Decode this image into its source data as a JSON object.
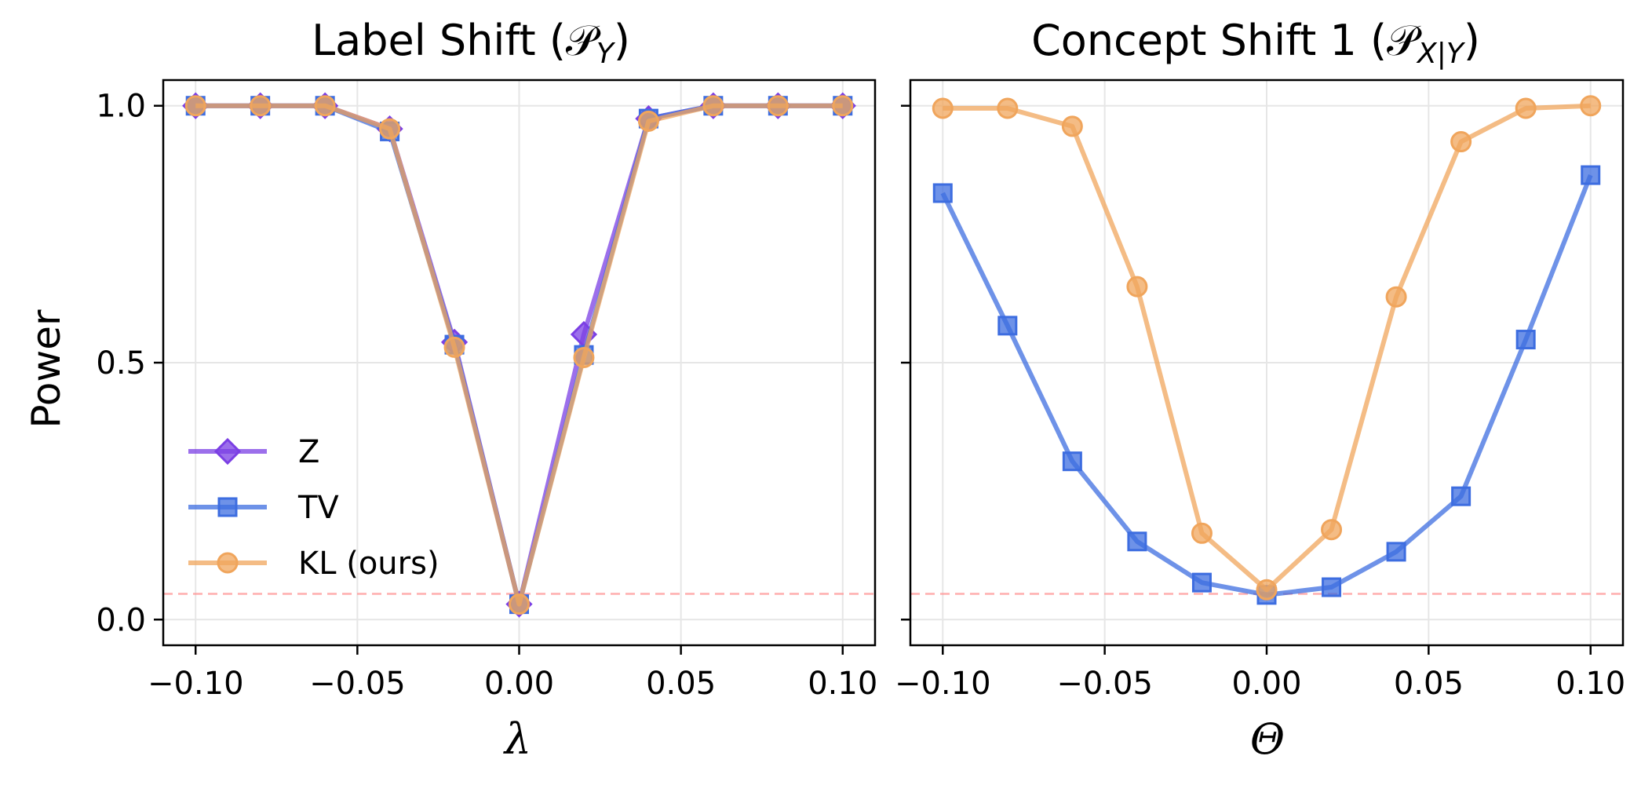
{
  "chart_data": [
    {
      "type": "line",
      "title": "Label Shift (",
      "title_math": "𝒫",
      "title_math_sub": "Y",
      "title_close": ")",
      "xlabel": "λ",
      "ylabel": "Power",
      "xlim": [
        -0.11,
        0.11
      ],
      "ylim": [
        -0.05,
        1.05
      ],
      "xticks": [
        -0.1,
        -0.05,
        0.0,
        0.05,
        0.1
      ],
      "xtick_labels": [
        "−0.10",
        "−0.05",
        "0.00",
        "0.05",
        "0.10"
      ],
      "yticks": [
        0.0,
        0.5,
        1.0
      ],
      "ytick_labels": [
        "0.0",
        "0.5",
        "1.0"
      ],
      "grid": true,
      "reference_line": {
        "y": 0.05,
        "style": "dashed",
        "color": "#ff9999"
      },
      "legend": {
        "location": "lower-left"
      },
      "x": [
        -0.1,
        -0.08,
        -0.06,
        -0.04,
        -0.02,
        0.0,
        0.02,
        0.04,
        0.06,
        0.08,
        0.1
      ],
      "series": [
        {
          "name": "Z",
          "marker": "diamond",
          "color": "#7b3fe4",
          "values": [
            1.0,
            1.0,
            1.0,
            0.955,
            0.54,
            0.03,
            0.555,
            0.975,
            1.0,
            1.0,
            1.0
          ]
        },
        {
          "name": "TV",
          "marker": "square",
          "color": "#3d6de0",
          "values": [
            1.0,
            1.0,
            1.0,
            0.95,
            0.535,
            0.03,
            0.515,
            0.975,
            1.0,
            1.0,
            1.0
          ]
        },
        {
          "name": "KL (ours)",
          "marker": "circle",
          "color": "#f0a55c",
          "values": [
            1.0,
            1.0,
            1.0,
            0.955,
            0.53,
            0.03,
            0.51,
            0.97,
            1.0,
            1.0,
            1.0
          ]
        }
      ]
    },
    {
      "type": "line",
      "title": "Concept Shift 1 (",
      "title_math": "𝒫",
      "title_math_sub": "X|Y",
      "title_close": ")",
      "xlabel": "Θ",
      "xlim": [
        -0.11,
        0.11
      ],
      "ylim": [
        -0.05,
        1.05
      ],
      "xticks": [
        -0.1,
        -0.05,
        0.0,
        0.05,
        0.1
      ],
      "xtick_labels": [
        "−0.10",
        "−0.05",
        "0.00",
        "0.05",
        "0.10"
      ],
      "yticks": [
        0.0,
        0.5,
        1.0
      ],
      "grid": true,
      "reference_line": {
        "y": 0.05,
        "style": "dashed",
        "color": "#ff9999"
      },
      "x": [
        -0.1,
        -0.08,
        -0.06,
        -0.04,
        -0.02,
        0.0,
        0.02,
        0.04,
        0.06,
        0.08,
        0.1
      ],
      "series": [
        {
          "name": "TV",
          "marker": "square",
          "color": "#3d6de0",
          "values": [
            0.83,
            0.572,
            0.308,
            0.152,
            0.072,
            0.048,
            0.063,
            0.132,
            0.24,
            0.545,
            0.865
          ]
        },
        {
          "name": "KL (ours)",
          "marker": "circle",
          "color": "#f0a55c",
          "values": [
            0.995,
            0.995,
            0.96,
            0.648,
            0.168,
            0.058,
            0.175,
            0.628,
            0.93,
            0.995,
            1.0
          ]
        }
      ]
    }
  ]
}
